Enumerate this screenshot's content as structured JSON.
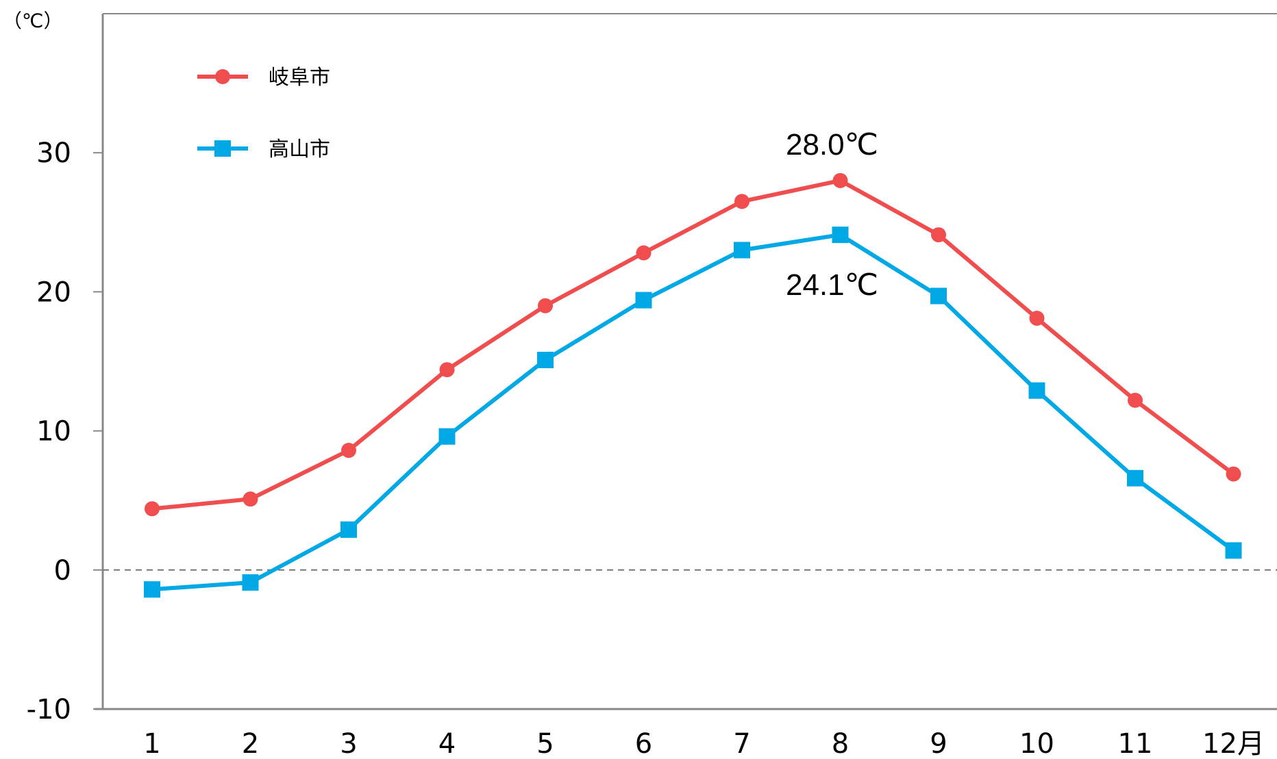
{
  "chart_data": {
    "type": "line",
    "y_unit_label": "（℃）",
    "x_unit_suffix": "月",
    "categories": [
      "1",
      "2",
      "3",
      "4",
      "5",
      "6",
      "7",
      "8",
      "9",
      "10",
      "11",
      "12"
    ],
    "ylim": [
      -10,
      40
    ],
    "yticks": [
      "-10",
      "0",
      "10",
      "20",
      "30"
    ],
    "zero_line": "dashed",
    "grid": false,
    "legend_position": "top-left",
    "series": [
      {
        "name": "岐阜市",
        "marker": "circle",
        "color": "#f04e4e",
        "values": [
          4.4,
          5.1,
          8.6,
          14.4,
          19.0,
          22.8,
          26.5,
          28.0,
          24.1,
          18.1,
          12.2,
          6.9
        ]
      },
      {
        "name": "高山市",
        "marker": "square",
        "color": "#00a8e6",
        "values": [
          -1.4,
          -0.9,
          2.9,
          9.6,
          15.1,
          19.4,
          23.0,
          24.1,
          19.7,
          12.9,
          6.6,
          1.4
        ]
      }
    ],
    "annotations": [
      {
        "text": "28.0℃",
        "series": 0,
        "index": 7,
        "placement": "above"
      },
      {
        "text": "24.1℃",
        "series": 1,
        "index": 7,
        "placement": "below"
      }
    ]
  }
}
